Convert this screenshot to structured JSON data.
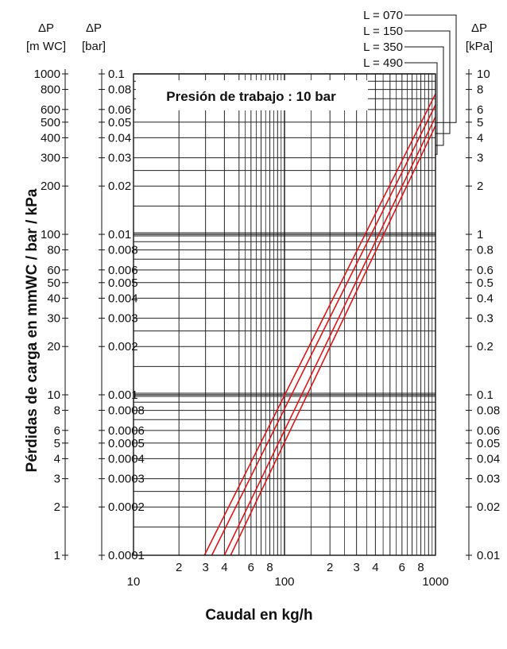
{
  "chart_data": {
    "type": "line",
    "title": "Presión de trabajo : 10 bar",
    "xlabel": "Caudal en kg/h",
    "ylabel": "Pérdidas de carga en mmWC / bar / kPa",
    "x_scale": "log",
    "y_scale": "log",
    "xlim": [
      10,
      1000
    ],
    "ylim": [
      1,
      1000
    ],
    "grid": true,
    "x_ticks_major": [
      "10",
      "100",
      "1000"
    ],
    "x_ticks_minor": [
      {
        "v": 20,
        "label": "2"
      },
      {
        "v": 30,
        "label": "3"
      },
      {
        "v": 40,
        "label": "4"
      },
      {
        "v": 60,
        "label": "6"
      },
      {
        "v": 80,
        "label": "8"
      },
      {
        "v": 200,
        "label": "2"
      },
      {
        "v": 300,
        "label": "3"
      },
      {
        "v": 400,
        "label": "4"
      },
      {
        "v": 600,
        "label": "6"
      },
      {
        "v": 800,
        "label": "8"
      }
    ],
    "y_axes": [
      {
        "header": [
          "ΔP",
          "[m WC]"
        ],
        "ticks": [
          {
            "v": 1000,
            "label": "1000"
          },
          {
            "v": 800,
            "label": "800"
          },
          {
            "v": 600,
            "label": "600"
          },
          {
            "v": 500,
            "label": "500"
          },
          {
            "v": 400,
            "label": "400"
          },
          {
            "v": 300,
            "label": "300"
          },
          {
            "v": 200,
            "label": "200"
          },
          {
            "v": 100,
            "label": "100"
          },
          {
            "v": 80,
            "label": "80"
          },
          {
            "v": 60,
            "label": "60"
          },
          {
            "v": 50,
            "label": "50"
          },
          {
            "v": 40,
            "label": "40"
          },
          {
            "v": 30,
            "label": "30"
          },
          {
            "v": 20,
            "label": "20"
          },
          {
            "v": 10,
            "label": "10"
          },
          {
            "v": 8,
            "label": "8"
          },
          {
            "v": 6,
            "label": "6"
          },
          {
            "v": 5,
            "label": "5"
          },
          {
            "v": 4,
            "label": "4"
          },
          {
            "v": 3,
            "label": "3"
          },
          {
            "v": 2,
            "label": "2"
          },
          {
            "v": 1,
            "label": "1"
          }
        ]
      },
      {
        "header": [
          "ΔP",
          "[bar]"
        ],
        "ticks": [
          {
            "v": 1000,
            "label": "0.1"
          },
          {
            "v": 800,
            "label": "0.08"
          },
          {
            "v": 600,
            "label": "0.06"
          },
          {
            "v": 500,
            "label": "0.05"
          },
          {
            "v": 400,
            "label": "0.04"
          },
          {
            "v": 300,
            "label": "0.03"
          },
          {
            "v": 200,
            "label": "0.02"
          },
          {
            "v": 100,
            "label": "0.01"
          },
          {
            "v": 80,
            "label": "0.008"
          },
          {
            "v": 60,
            "label": "0.006"
          },
          {
            "v": 50,
            "label": "0.005"
          },
          {
            "v": 40,
            "label": "0.004"
          },
          {
            "v": 30,
            "label": "0.003"
          },
          {
            "v": 20,
            "label": "0.002"
          },
          {
            "v": 10,
            "label": "0.001"
          },
          {
            "v": 8,
            "label": "0.0008"
          },
          {
            "v": 6,
            "label": "0.0006"
          },
          {
            "v": 5,
            "label": "0.0005"
          },
          {
            "v": 4,
            "label": "0.0004"
          },
          {
            "v": 3,
            "label": "0.0003"
          },
          {
            "v": 2,
            "label": "0.0002"
          },
          {
            "v": 1,
            "label": "0.0001"
          }
        ]
      },
      {
        "header": [
          "ΔP",
          "[kPa]"
        ],
        "ticks": [
          {
            "v": 1000,
            "label": "10"
          },
          {
            "v": 800,
            "label": "8"
          },
          {
            "v": 600,
            "label": "6"
          },
          {
            "v": 500,
            "label": "5"
          },
          {
            "v": 400,
            "label": "4"
          },
          {
            "v": 300,
            "label": "3"
          },
          {
            "v": 200,
            "label": "2"
          },
          {
            "v": 100,
            "label": "1"
          },
          {
            "v": 80,
            "label": "0.8"
          },
          {
            "v": 60,
            "label": "0.6"
          },
          {
            "v": 50,
            "label": "0.5"
          },
          {
            "v": 40,
            "label": "0.4"
          },
          {
            "v": 30,
            "label": "0.3"
          },
          {
            "v": 20,
            "label": "0.2"
          },
          {
            "v": 10,
            "label": "0.1"
          },
          {
            "v": 8,
            "label": "0.08"
          },
          {
            "v": 6,
            "label": "0.06"
          },
          {
            "v": 5,
            "label": "0.05"
          },
          {
            "v": 4,
            "label": "0.04"
          },
          {
            "v": 3,
            "label": "0.03"
          },
          {
            "v": 2,
            "label": "0.02"
          },
          {
            "v": 1,
            "label": "0.01"
          }
        ]
      }
    ],
    "series_color": "#d61a1f",
    "series": [
      {
        "name": "L = 070",
        "points": [
          [
            29.5,
            1
          ],
          [
            1000,
            750
          ]
        ]
      },
      {
        "name": "L = 150",
        "points": [
          [
            33,
            1
          ],
          [
            1000,
            640
          ]
        ]
      },
      {
        "name": "L = 350",
        "points": [
          [
            40,
            1
          ],
          [
            1000,
            540
          ]
        ]
      },
      {
        "name": "L = 490",
        "points": [
          [
            44,
            1
          ],
          [
            1000,
            475
          ]
        ]
      }
    ]
  }
}
